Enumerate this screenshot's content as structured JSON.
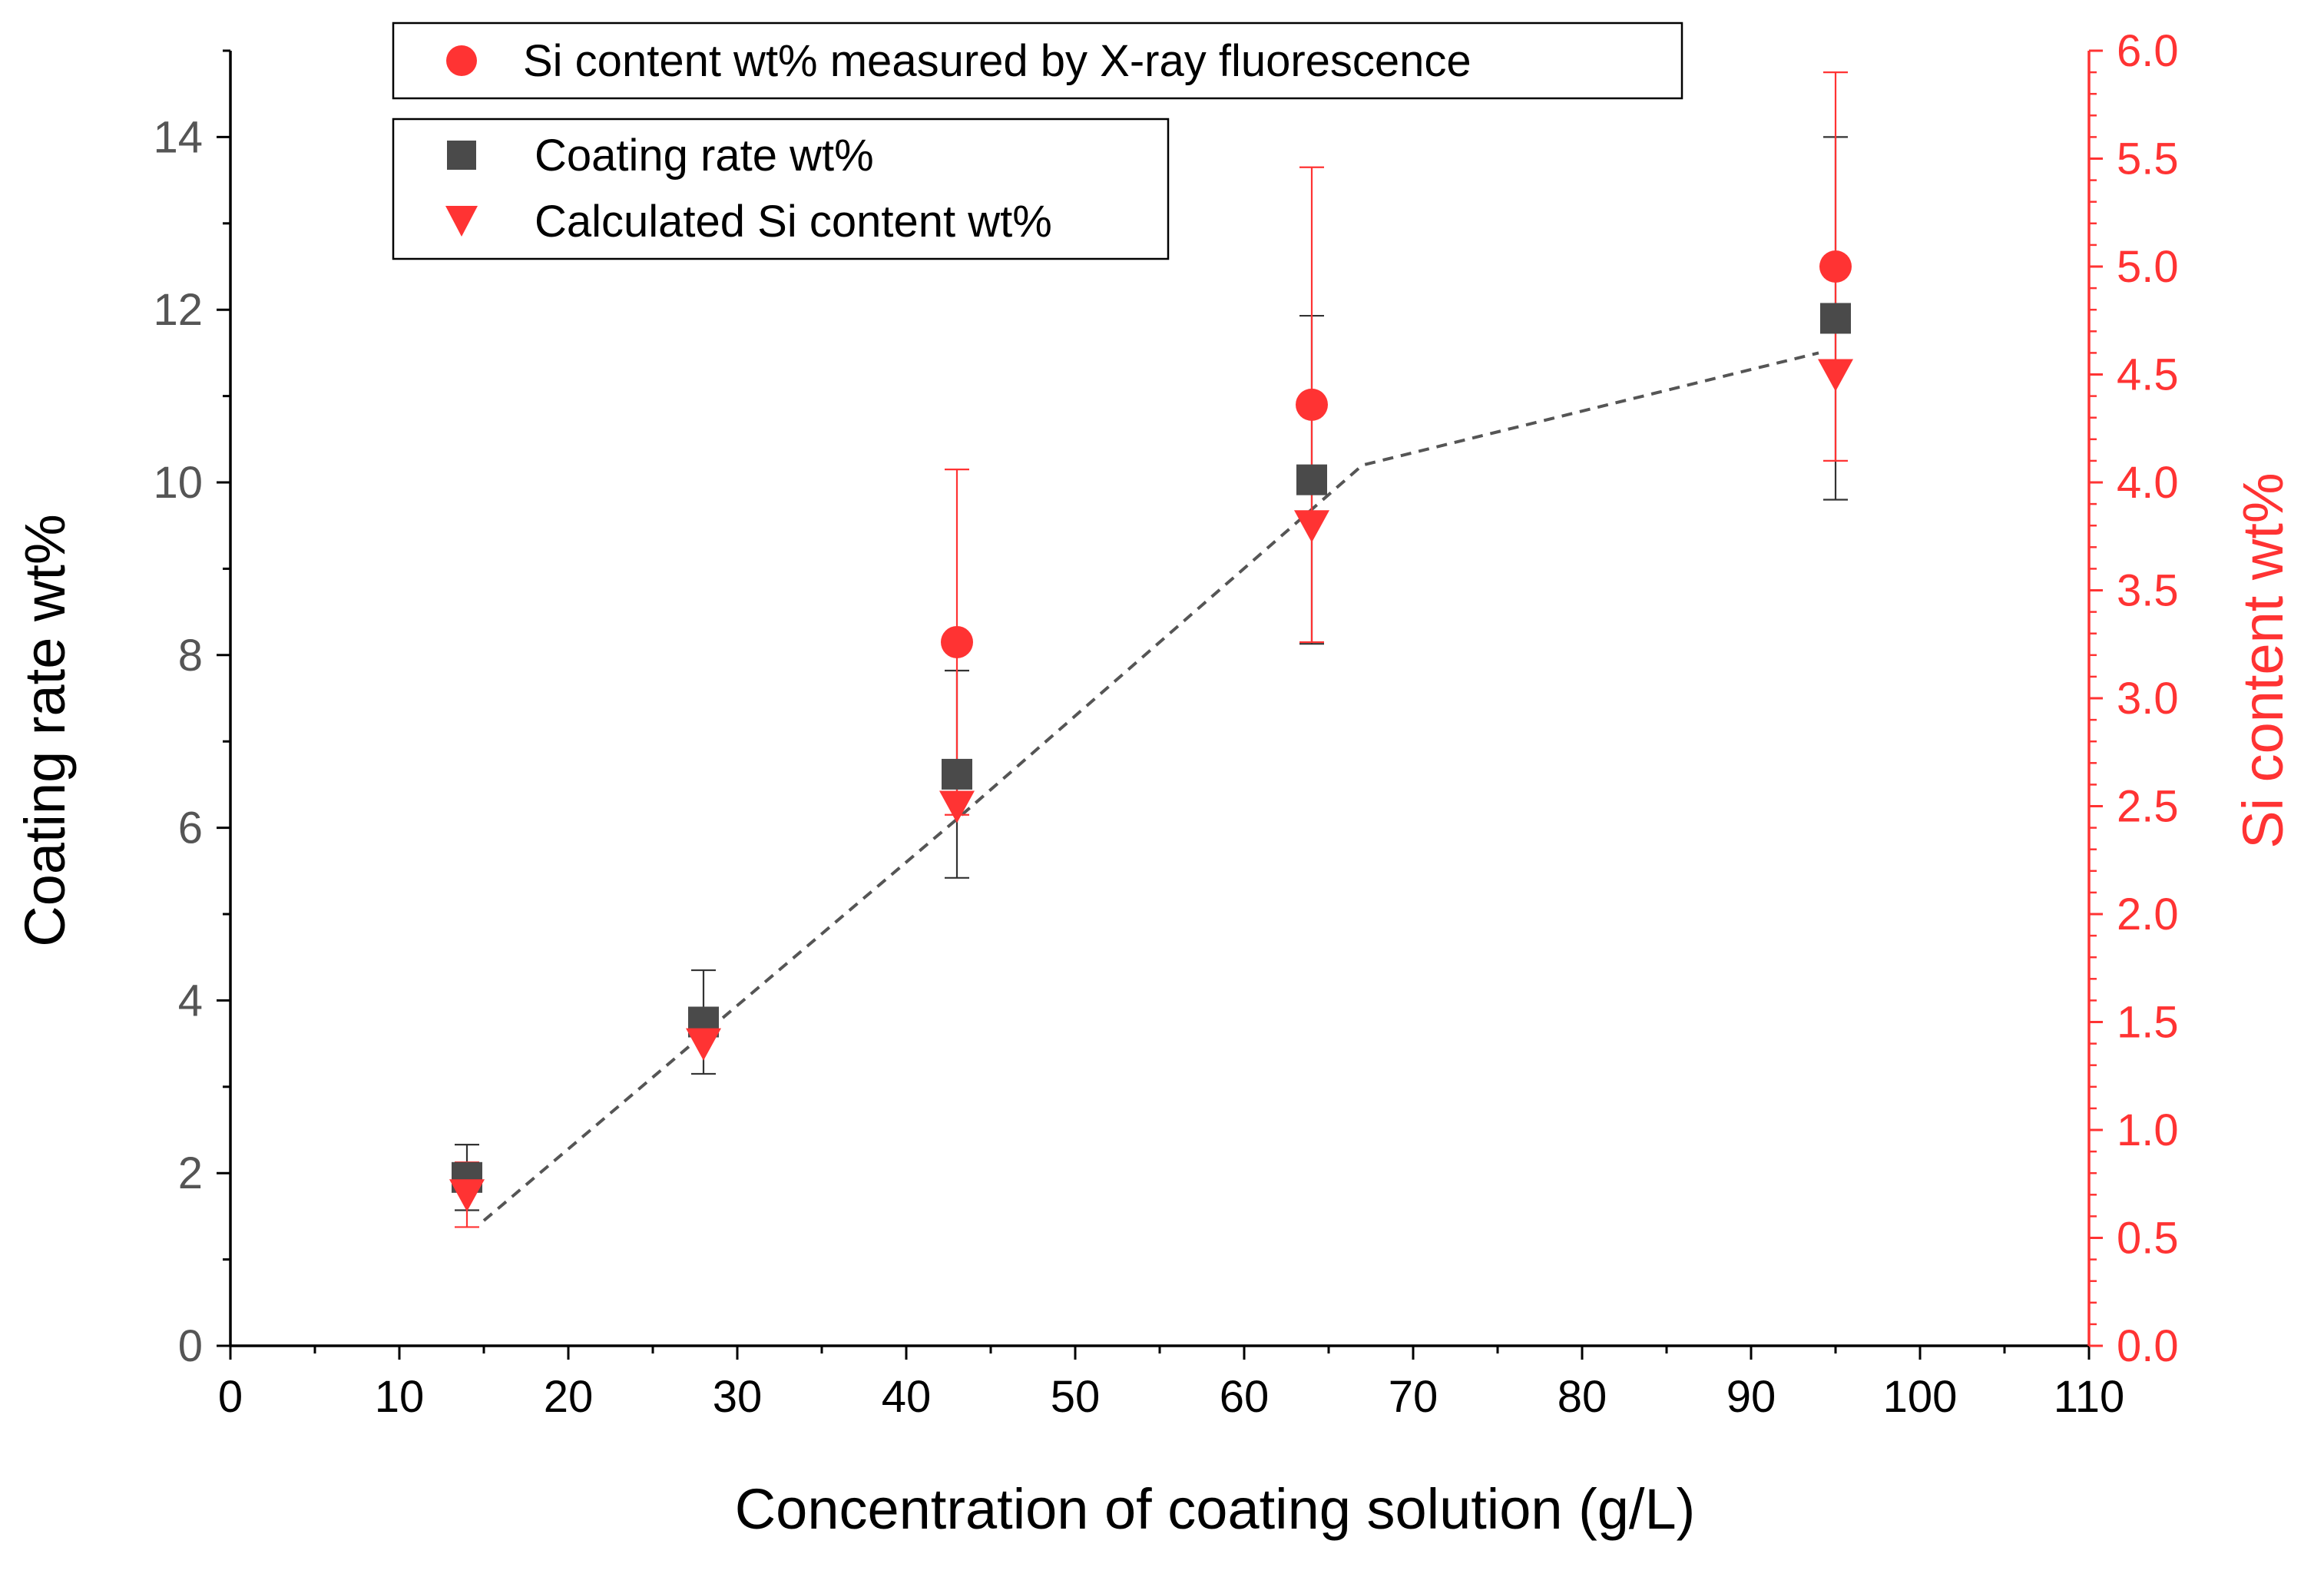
{
  "chart_data": {
    "type": "scatter",
    "title": "",
    "xlabel": "Concentration of coating solution (g/L)",
    "ylabel_left": "Coating rate wt%",
    "ylabel_right": "Si content wt%",
    "xlim": [
      0,
      110
    ],
    "ylim_left": [
      0,
      15
    ],
    "ylim_right": [
      0,
      6
    ],
    "x_ticks": [
      0,
      10,
      20,
      30,
      40,
      50,
      60,
      70,
      80,
      90,
      100,
      110
    ],
    "y_left_ticks": [
      0,
      2,
      4,
      6,
      8,
      10,
      12,
      14
    ],
    "y_right_ticks": [
      "0.0",
      "0.5",
      "1.0",
      "1.5",
      "2.0",
      "2.5",
      "3.0",
      "3.5",
      "4.0",
      "4.5",
      "5.0",
      "5.5",
      "6.0"
    ],
    "grid": false,
    "colors": {
      "coating": "#4a4a4a",
      "si": "#ff3333",
      "right_axis": "#ff3333",
      "axis": "#000000",
      "trend": "#555555"
    },
    "legend_top": {
      "placement": "top-center",
      "entries": [
        {
          "marker": "circle",
          "label": "Si content wt% measured by X-ray fluorescence"
        }
      ]
    },
    "legend_main": {
      "placement": "top-left",
      "entries": [
        {
          "marker": "square",
          "label": "Coating rate wt%"
        },
        {
          "marker": "triangle-down",
          "label": "Calculated Si content wt%"
        }
      ]
    },
    "series": [
      {
        "name": "Coating rate wt%",
        "axis": "left",
        "marker": "square",
        "x": [
          14,
          28,
          43,
          64,
          95
        ],
        "y": [
          1.95,
          3.75,
          6.62,
          10.03,
          11.9
        ],
        "err": [
          0.38,
          0.6,
          1.2,
          1.9,
          2.1
        ]
      },
      {
        "name": "Si content wt% measured by X-ray fluorescence",
        "axis": "right",
        "marker": "circle",
        "x": [
          43,
          64,
          95
        ],
        "y": [
          3.26,
          4.36,
          5.0
        ],
        "err": [
          0.8,
          1.1,
          0.9
        ]
      },
      {
        "name": "Calculated Si content wt%",
        "axis": "right",
        "marker": "triangle-down",
        "x": [
          14,
          28,
          43,
          64,
          95
        ],
        "y": [
          0.7,
          1.4,
          2.5,
          3.8,
          4.5
        ],
        "err": [
          0.15,
          0,
          0,
          0,
          0
        ]
      }
    ],
    "trend_line": {
      "axis": "left",
      "style": "dashed",
      "x": [
        15,
        43,
        67,
        94
      ],
      "y": [
        1.45,
        6.1,
        10.2,
        11.5
      ]
    }
  }
}
